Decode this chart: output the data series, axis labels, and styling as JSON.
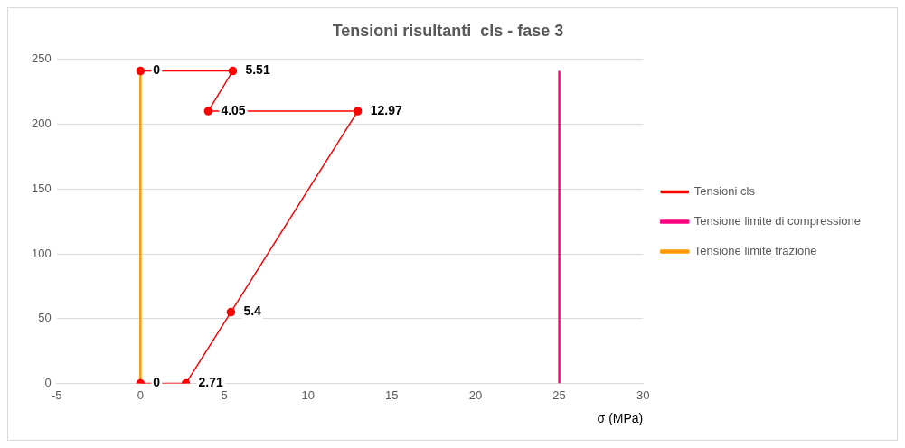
{
  "chart_data": {
    "type": "line",
    "title": "Tensioni risultanti  cls - fase 3",
    "xlabel": "σ (MPa)",
    "xlim": [
      -5,
      30
    ],
    "xticks": [
      -5,
      0,
      5,
      10,
      15,
      20,
      25,
      30
    ],
    "ylim": [
      0,
      250
    ],
    "yticks": [
      0,
      50,
      100,
      150,
      200,
      250
    ],
    "grid": "y",
    "legend": "right",
    "series": [
      {
        "name": "Tensioni cls",
        "color": "#ff0000",
        "marker": "circle",
        "x": [
          0,
          2.71,
          5.4,
          12.97,
          4.05,
          5.51,
          0
        ],
        "values": [
          0,
          0,
          55,
          210,
          210,
          241,
          241
        ]
      },
      {
        "name": "Tensione limite di compressione",
        "color": "#ff0080",
        "marker": "none",
        "x": [
          25,
          25
        ],
        "values": [
          0,
          241
        ]
      },
      {
        "name": "Tensione limite trazione",
        "color": "#ff9900",
        "marker": "none",
        "x": [
          0,
          0
        ],
        "values": [
          0,
          241
        ]
      }
    ],
    "annotations": [
      {
        "text": "0",
        "x": 0,
        "y": 0
      },
      {
        "text": "2.71",
        "x": 2.71,
        "y": 0
      },
      {
        "text": "5.4",
        "x": 5.4,
        "y": 55
      },
      {
        "text": "12.97",
        "x": 12.97,
        "y": 210
      },
      {
        "text": "4.05",
        "x": 4.05,
        "y": 210
      },
      {
        "text": "5.51",
        "x": 5.51,
        "y": 241
      },
      {
        "text": "0",
        "x": 0,
        "y": 241
      }
    ]
  }
}
